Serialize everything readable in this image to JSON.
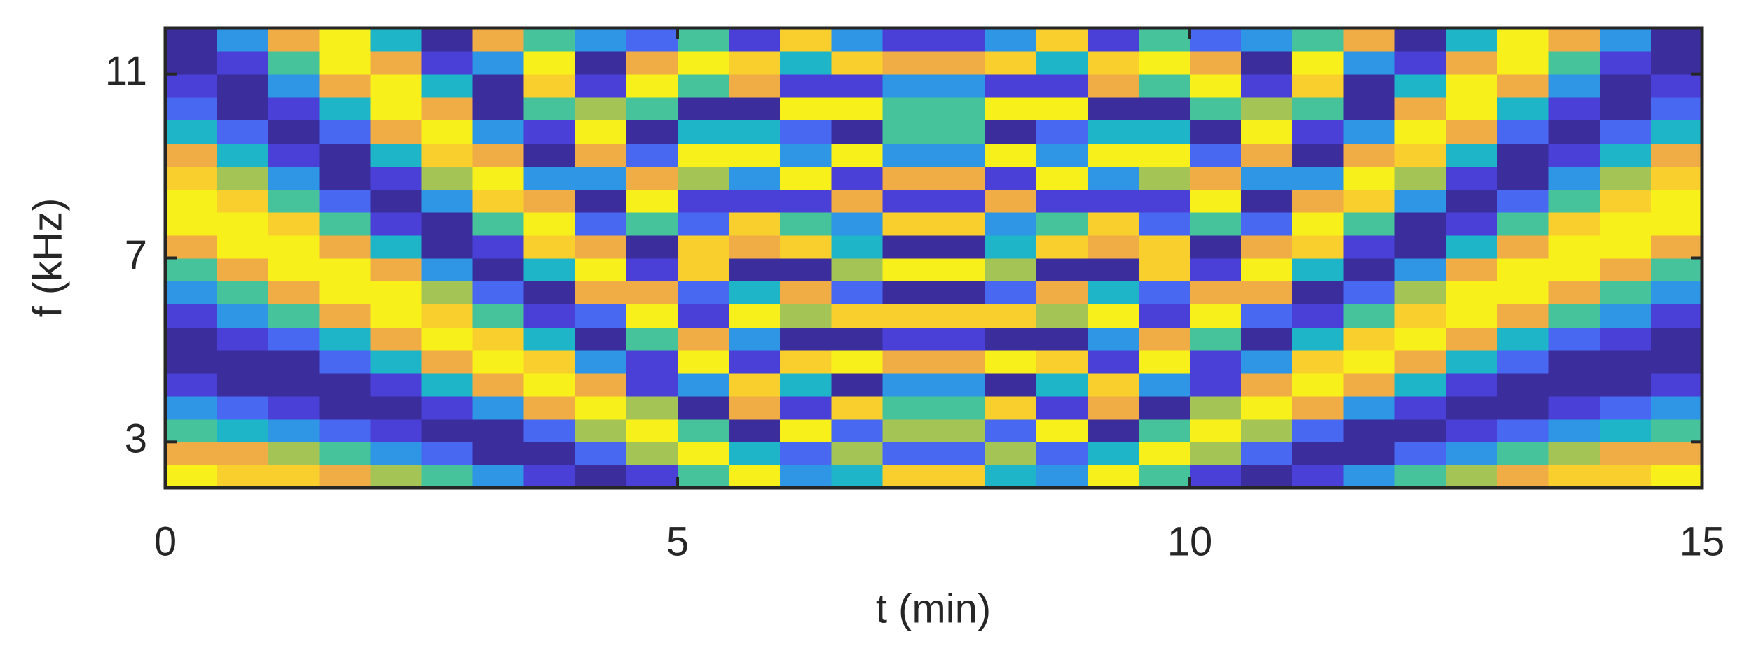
{
  "chart_data": {
    "type": "heatmap",
    "x_label": "t (min)",
    "y_label": "f (kHz)",
    "xlim": [
      0,
      15
    ],
    "ylim": [
      2,
      12
    ],
    "xticks": [
      0,
      5,
      10,
      15
    ],
    "yticks": [
      3,
      7,
      11
    ],
    "colorscale": [
      "#3b2d9c",
      "#4a3fd6",
      "#4868f2",
      "#2e96e4",
      "#1fb5c9",
      "#47c39c",
      "#a4c455",
      "#f0ad45",
      "#f8cf2c",
      "#f8f01a"
    ],
    "x": [
      0.25,
      0.75,
      1.25,
      1.75,
      2.25,
      2.75,
      3.25,
      3.75,
      4.25,
      4.75,
      5.25,
      5.75,
      6.25,
      6.75,
      7.25,
      7.75,
      8.25,
      8.75,
      9.25,
      9.75,
      10.25,
      10.75,
      11.25,
      11.75,
      12.25,
      12.75,
      13.25,
      13.75,
      14.25,
      14.75
    ],
    "y": [
      2.25,
      2.75,
      3.25,
      3.75,
      4.25,
      4.75,
      5.25,
      5.75,
      6.25,
      6.75,
      7.25,
      7.75,
      8.25,
      8.75,
      9.25,
      9.75,
      10.25,
      10.75,
      11.25,
      11.75
    ],
    "z": [
      [
        9,
        8,
        8,
        7,
        6,
        5,
        3,
        1,
        0,
        1,
        5,
        9,
        3,
        4,
        8,
        8,
        4,
        3,
        9,
        5,
        1,
        0,
        1,
        3,
        5,
        6,
        7,
        8,
        8,
        9
      ],
      [
        7,
        7,
        6,
        5,
        3,
        2,
        0,
        0,
        2,
        6,
        9,
        4,
        2,
        6,
        2,
        2,
        6,
        2,
        4,
        9,
        6,
        2,
        0,
        0,
        2,
        3,
        5,
        6,
        7,
        7
      ],
      [
        5,
        4,
        3,
        2,
        1,
        0,
        0,
        2,
        6,
        9,
        5,
        0,
        9,
        2,
        6,
        6,
        2,
        9,
        0,
        5,
        9,
        6,
        2,
        0,
        0,
        1,
        2,
        3,
        4,
        5
      ],
      [
        3,
        2,
        1,
        0,
        0,
        1,
        3,
        7,
        9,
        6,
        0,
        7,
        1,
        8,
        5,
        5,
        8,
        1,
        7,
        0,
        6,
        9,
        7,
        3,
        1,
        0,
        0,
        1,
        2,
        3
      ],
      [
        1,
        0,
        0,
        0,
        1,
        4,
        7,
        9,
        7,
        1,
        3,
        8,
        4,
        0,
        3,
        3,
        0,
        4,
        8,
        3,
        1,
        7,
        9,
        7,
        4,
        1,
        0,
        0,
        0,
        1
      ],
      [
        0,
        0,
        0,
        2,
        4,
        7,
        9,
        8,
        3,
        1,
        9,
        1,
        8,
        9,
        7,
        7,
        9,
        8,
        1,
        9,
        1,
        3,
        8,
        9,
        7,
        4,
        2,
        0,
        0,
        0
      ],
      [
        0,
        1,
        2,
        4,
        7,
        9,
        8,
        4,
        0,
        5,
        7,
        3,
        0,
        0,
        1,
        1,
        0,
        0,
        3,
        7,
        5,
        0,
        4,
        8,
        9,
        7,
        4,
        2,
        1,
        0
      ],
      [
        1,
        3,
        5,
        7,
        9,
        8,
        5,
        1,
        2,
        9,
        1,
        9,
        6,
        8,
        8,
        8,
        8,
        6,
        9,
        1,
        9,
        2,
        1,
        5,
        8,
        9,
        7,
        5,
        3,
        1
      ],
      [
        3,
        5,
        7,
        9,
        9,
        6,
        2,
        0,
        7,
        7,
        2,
        4,
        7,
        2,
        0,
        0,
        2,
        7,
        4,
        2,
        7,
        7,
        0,
        2,
        6,
        9,
        9,
        7,
        5,
        3
      ],
      [
        5,
        7,
        9,
        9,
        7,
        3,
        0,
        4,
        9,
        1,
        8,
        0,
        0,
        6,
        9,
        9,
        6,
        0,
        0,
        8,
        1,
        9,
        4,
        0,
        3,
        7,
        9,
        9,
        7,
        5
      ],
      [
        7,
        9,
        9,
        7,
        4,
        0,
        1,
        8,
        7,
        0,
        8,
        7,
        8,
        4,
        0,
        0,
        4,
        8,
        7,
        8,
        0,
        7,
        8,
        1,
        0,
        4,
        7,
        9,
        9,
        7
      ],
      [
        9,
        9,
        8,
        5,
        1,
        0,
        5,
        9,
        2,
        5,
        2,
        8,
        5,
        3,
        8,
        8,
        3,
        5,
        8,
        2,
        5,
        2,
        9,
        5,
        0,
        1,
        5,
        8,
        9,
        9
      ],
      [
        9,
        8,
        5,
        2,
        0,
        3,
        8,
        7,
        0,
        9,
        1,
        1,
        1,
        7,
        1,
        1,
        7,
        1,
        1,
        1,
        9,
        0,
        7,
        8,
        3,
        0,
        2,
        5,
        8,
        9
      ],
      [
        8,
        6,
        3,
        0,
        1,
        6,
        9,
        3,
        3,
        7,
        6,
        3,
        9,
        1,
        7,
        7,
        1,
        9,
        3,
        6,
        7,
        3,
        3,
        9,
        6,
        1,
        0,
        3,
        6,
        8
      ],
      [
        7,
        4,
        1,
        0,
        4,
        8,
        7,
        0,
        7,
        2,
        9,
        9,
        3,
        9,
        3,
        3,
        9,
        3,
        9,
        9,
        2,
        7,
        0,
        7,
        8,
        4,
        0,
        1,
        4,
        7
      ],
      [
        4,
        2,
        0,
        2,
        7,
        9,
        3,
        1,
        9,
        0,
        4,
        4,
        2,
        0,
        5,
        5,
        0,
        2,
        4,
        4,
        0,
        9,
        1,
        3,
        9,
        7,
        2,
        0,
        2,
        4
      ],
      [
        2,
        0,
        1,
        4,
        9,
        7,
        0,
        5,
        6,
        5,
        0,
        0,
        9,
        9,
        5,
        5,
        9,
        9,
        0,
        0,
        5,
        6,
        5,
        0,
        7,
        9,
        4,
        1,
        0,
        2
      ],
      [
        1,
        0,
        3,
        7,
        9,
        4,
        0,
        8,
        1,
        9,
        5,
        7,
        1,
        1,
        3,
        3,
        1,
        1,
        7,
        5,
        9,
        1,
        8,
        0,
        4,
        9,
        7,
        3,
        0,
        1
      ],
      [
        0,
        1,
        5,
        9,
        7,
        1,
        3,
        9,
        0,
        7,
        9,
        8,
        4,
        8,
        7,
        7,
        8,
        4,
        8,
        9,
        7,
        0,
        9,
        3,
        1,
        7,
        9,
        5,
        1,
        0
      ],
      [
        0,
        3,
        7,
        9,
        4,
        0,
        7,
        5,
        3,
        2,
        5,
        1,
        8,
        3,
        1,
        1,
        3,
        8,
        1,
        5,
        2,
        3,
        5,
        7,
        0,
        4,
        9,
        7,
        3,
        0
      ]
    ]
  }
}
